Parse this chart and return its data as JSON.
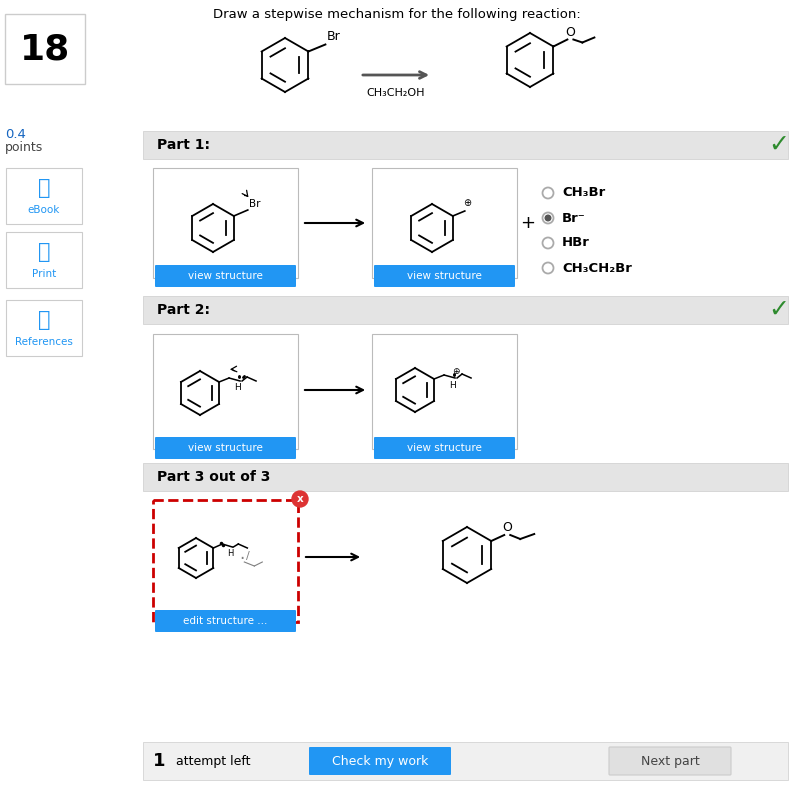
{
  "bg_color": "#ffffff",
  "title": "Draw a stepwise mechanism for the following reaction:",
  "question_number": "18",
  "part1_label": "Part 1:",
  "part2_label": "Part 2:",
  "part3_label": "Part 3 out of 3",
  "radio_options_plain": [
    "CH₃Br",
    "Br⁻",
    "HBr",
    "CH₃CH₂Br"
  ],
  "selected_radio": 1,
  "view_structure_btn_color": "#2196f3",
  "check_btn_color": "#2196f3",
  "next_btn_color": "#d0d0d0",
  "check_btn_text": "Check my work",
  "next_btn_text": "Next part",
  "attempts_text": "1",
  "attempts_suffix": "  attempt left",
  "green_check_color": "#2e8b2e",
  "header_bg": "#e4e4e4",
  "part3_box_border": "#cc0000",
  "sidebar_bg": "#f5f5f5",
  "sidebar_border": "#cccccc"
}
